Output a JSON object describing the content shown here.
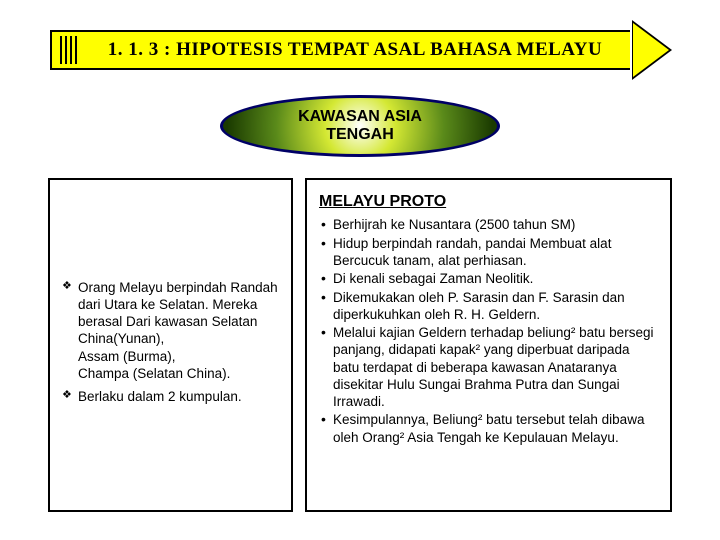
{
  "title": "1. 1. 3 : HIPOTESIS TEMPAT ASAL BAHASA MELAYU",
  "oval": "KAWASAN ASIA\nTENGAH",
  "left": {
    "items": [
      "Orang Melayu berpindah Randah dari Utara ke Selatan. Mereka berasal Dari kawasan Selatan China(Yunan),\nAssam (Burma),\nChampa (Selatan China).",
      "Berlaku dalam 2 kumpulan."
    ]
  },
  "right": {
    "heading": "MELAYU PROTO",
    "items": [
      "Berhijrah ke Nusantara (2500 tahun SM)",
      "Hidup berpindah randah, pandai Membuat alat Bercucuk tanam, alat perhiasan.",
      "Di kenali sebagai Zaman Neolitik.",
      "Dikemukakan oleh P. Sarasin dan F. Sarasin dan diperkukuhkan oleh R. H. Geldern.",
      "Melalui kajian Geldern terhadap beliung² batu bersegi panjang, didapati kapak² yang diperbuat daripada batu terdapat di beberapa kawasan Anataranya disekitar Hulu Sungai Brahma Putra dan Sungai Irrawadi.",
      "Kesimpulannya, Beliung² batu tersebut telah dibawa oleh Orang² Asia Tengah ke Kepulauan Melayu."
    ]
  },
  "colors": {
    "arrow_fill": "#ffff00",
    "oval_border": "#000066",
    "box_border": "#000000"
  }
}
